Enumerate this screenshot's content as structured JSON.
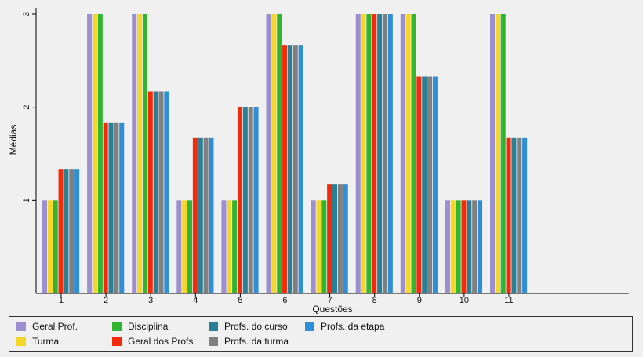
{
  "chart_data": {
    "type": "bar",
    "xlabel": "Questões",
    "ylabel": "Médias",
    "ylim": [
      0,
      3
    ],
    "yticks": [
      1,
      2,
      3
    ],
    "grid": false,
    "legend_position": "bottom",
    "categories": [
      "1",
      "2",
      "3",
      "4",
      "5",
      "6",
      "7",
      "8",
      "9",
      "10",
      "11"
    ],
    "series": [
      {
        "name": "Geral Prof.",
        "color": "#9b8fd0",
        "values": [
          1,
          3,
          3,
          1,
          1,
          3,
          1,
          3,
          3,
          1,
          3
        ]
      },
      {
        "name": "Turma",
        "color": "#f7d62a",
        "values": [
          1,
          3,
          3,
          1,
          1,
          3,
          1,
          3,
          3,
          1,
          3
        ]
      },
      {
        "name": "Disciplina",
        "color": "#2fb52f",
        "values": [
          1,
          3,
          3,
          1,
          1,
          3,
          1,
          3,
          3,
          1,
          3
        ]
      },
      {
        "name": "Geral dos Profs",
        "color": "#f42a0a",
        "values": [
          1.33,
          1.83,
          2.17,
          1.67,
          2.0,
          2.67,
          1.17,
          3,
          2.33,
          1,
          1.67
        ]
      },
      {
        "name": "Profs. do curso",
        "color": "#2a8096",
        "values": [
          1.33,
          1.83,
          2.17,
          1.67,
          2.0,
          2.67,
          1.17,
          3,
          2.33,
          1,
          1.67
        ]
      },
      {
        "name": "Profs. da turma",
        "color": "#808080",
        "values": [
          1.33,
          1.83,
          2.17,
          1.67,
          2.0,
          2.67,
          1.17,
          3,
          2.33,
          1,
          1.67
        ]
      },
      {
        "name": "Profs. da etapa",
        "color": "#2e8fd6",
        "values": [
          1.33,
          1.83,
          2.17,
          1.67,
          2.0,
          2.67,
          1.17,
          3,
          2.33,
          1,
          1.67
        ]
      }
    ],
    "legend": [
      {
        "label": "Geral Prof.",
        "color": "#9b8fd0"
      },
      {
        "label": "Turma",
        "color": "#f7d62a"
      },
      {
        "label": "Disciplina",
        "color": "#2fb52f"
      },
      {
        "label": "Geral dos Profs",
        "color": "#f42a0a"
      },
      {
        "label": "Profs. do curso",
        "color": "#2a8096"
      },
      {
        "label": "Profs. da turma",
        "color": "#808080"
      },
      {
        "label": "Profs. da etapa",
        "color": "#2e8fd6"
      }
    ]
  }
}
